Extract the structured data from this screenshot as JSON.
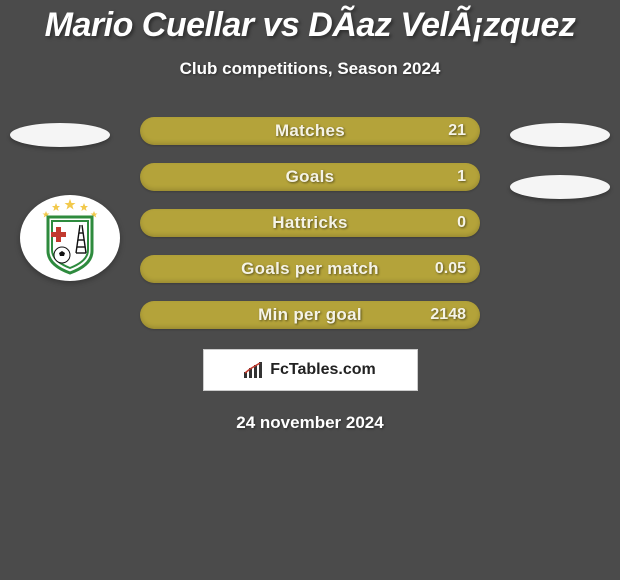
{
  "title": "Mario Cuellar vs DÃ­az VelÃ¡zquez",
  "subtitle": "Club competitions, Season 2024",
  "date": "24 november 2024",
  "footer_brand": "FcTables.com",
  "colors": {
    "background": "#4b4b4b",
    "bar_fill": "#b4a33a",
    "ellipse": "#f5f5f5",
    "text_light": "#ffffff",
    "bar_text": "#f5f3e6",
    "box_bg": "#ffffff"
  },
  "typography": {
    "title_fontsize": 34,
    "subtitle_fontsize": 17,
    "stat_label_fontsize": 17,
    "stat_value_fontsize": 16,
    "date_fontsize": 17
  },
  "side_ellipses": [
    {
      "pos": "tl"
    },
    {
      "pos": "tr"
    },
    {
      "pos": "r2"
    }
  ],
  "club_badge": {
    "name": "oriente-petrolero",
    "shield_color": "#ffffff",
    "border_color": "#2e8b3e",
    "cross_color": "#c23a2e",
    "star_color": "#f2c94c"
  },
  "stats": [
    {
      "label": "Matches",
      "value": "21"
    },
    {
      "label": "Goals",
      "value": "1"
    },
    {
      "label": "Hattricks",
      "value": "0"
    },
    {
      "label": "Goals per match",
      "value": "0.05"
    },
    {
      "label": "Min per goal",
      "value": "2148"
    }
  ]
}
